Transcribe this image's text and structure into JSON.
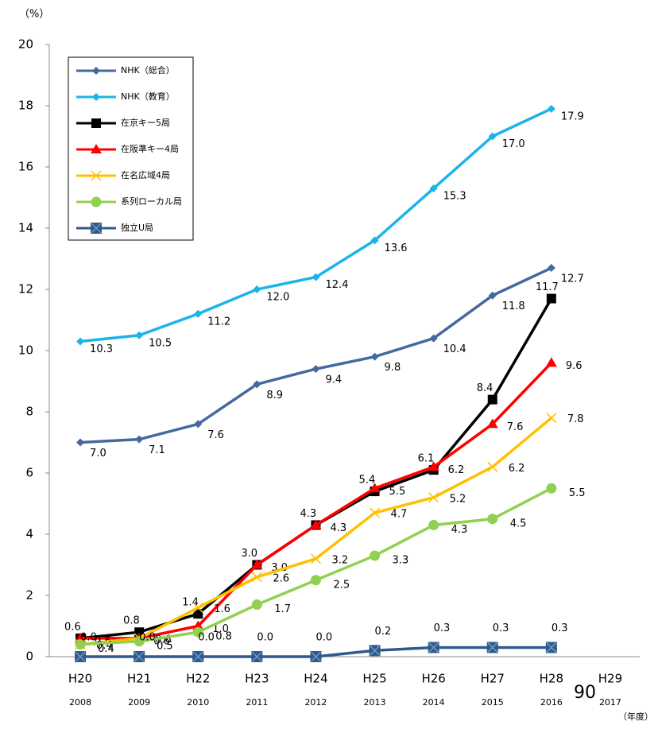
{
  "chart_data": {
    "type": "line",
    "y_label": "（%）",
    "x_label": "（年度）",
    "annotation": "90",
    "categories": [
      "H20",
      "H21",
      "H22",
      "H23",
      "H24",
      "H25",
      "H26",
      "H27",
      "H28",
      "H29"
    ],
    "category_years": [
      "2008",
      "2009",
      "2010",
      "2011",
      "2012",
      "2013",
      "2014",
      "2015",
      "2016",
      "2017"
    ],
    "ylim": [
      0,
      20
    ],
    "yticks": [
      0,
      2,
      4,
      6,
      8,
      10,
      12,
      14,
      16,
      18,
      20
    ],
    "grid": false,
    "legend": "top-left",
    "series": [
      {
        "name": "NHK（総合）",
        "color": "#44699e",
        "marker": "diamond",
        "values": [
          7.0,
          7.1,
          7.6,
          8.9,
          9.4,
          9.8,
          10.4,
          11.8,
          12.7,
          null
        ],
        "value_labels": [
          "7.0",
          "7.1",
          "7.6",
          "8.9",
          "9.4",
          "9.8",
          "10.4",
          "11.8",
          "12.7",
          null
        ]
      },
      {
        "name": "NHK（教育）",
        "color": "#1bb4ea",
        "marker": "diamond",
        "values": [
          10.3,
          10.5,
          11.2,
          12.0,
          12.4,
          13.6,
          15.3,
          17.0,
          17.9,
          null
        ],
        "value_labels": [
          "10.3",
          "10.5",
          "11.2",
          "12.0",
          "12.4",
          "13.6",
          "15.3",
          "17.0",
          "17.9",
          null
        ]
      },
      {
        "name": "在京キー5局",
        "color": "#000000",
        "marker": "square",
        "values": [
          0.6,
          0.8,
          1.4,
          3.0,
          4.3,
          5.4,
          6.1,
          8.4,
          11.7,
          null
        ],
        "value_labels": [
          "0.6",
          "0.8",
          "1.4",
          "3.0",
          "4.3",
          "5.4",
          "6.1",
          "8.4",
          "11.7",
          null
        ]
      },
      {
        "name": "在阪準キー4局",
        "color": "#ff0000",
        "marker": "triangle",
        "values": [
          0.6,
          0.6,
          1.0,
          3.0,
          4.3,
          5.5,
          6.2,
          7.6,
          9.6,
          null
        ],
        "value_labels": [
          "0.6",
          "0.6",
          "1.0",
          "3.0",
          "4.3",
          "5.5",
          "6.2",
          "7.6",
          "9.6",
          null
        ]
      },
      {
        "name": "在名広域4局",
        "color": "#ffc000",
        "marker": "x",
        "values": [
          0.4,
          0.6,
          1.6,
          2.6,
          3.2,
          4.7,
          5.2,
          6.2,
          7.8,
          null
        ],
        "value_labels": [
          "0.4",
          "0.6",
          "1.6",
          "2.6",
          "3.2",
          "4.7",
          "5.2",
          "6.2",
          "7.8",
          null
        ]
      },
      {
        "name": "系列ローカル局",
        "color": "#92d050",
        "marker": "circle",
        "values": [
          0.4,
          0.5,
          0.8,
          1.7,
          2.5,
          3.3,
          4.3,
          4.5,
          5.5,
          null
        ],
        "value_labels": [
          "0.4",
          "0.5",
          "0.8",
          "1.7",
          "2.5",
          "3.3",
          "4.3",
          "4.5",
          "5.5",
          null
        ]
      },
      {
        "name": "独立U局",
        "color": "#2f5b8c",
        "marker": "squarex",
        "values": [
          0.0,
          0.0,
          0.0,
          0.0,
          0.0,
          0.2,
          0.3,
          0.3,
          0.3,
          null
        ],
        "value_labels": [
          "0.0",
          "0.0",
          "0.0",
          "0.0",
          "0.0",
          "0.2",
          "0.3",
          "0.3",
          "0.3",
          null
        ]
      }
    ]
  }
}
